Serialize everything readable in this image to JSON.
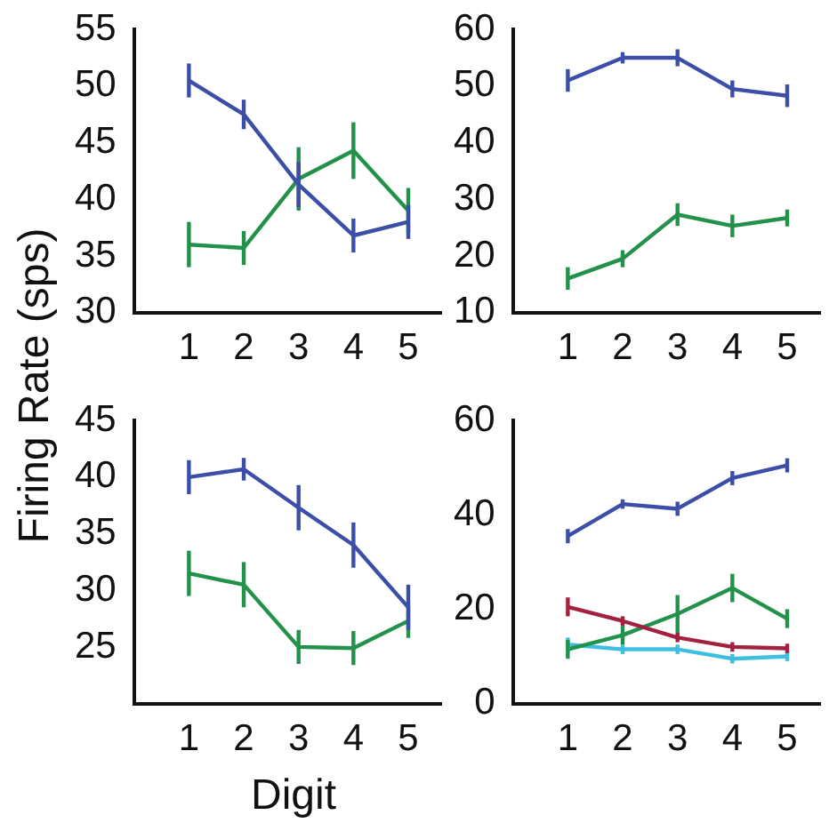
{
  "chart_data": [
    {
      "type": "line",
      "ylabel": "Firing Rate (sps)",
      "x": [
        1,
        2,
        3,
        4,
        5
      ],
      "xlim": [
        0,
        5.6
      ],
      "xticks": [
        1,
        2,
        3,
        4,
        5
      ],
      "ylim": [
        30,
        55
      ],
      "yticks": [
        30,
        35,
        40,
        45,
        50,
        55
      ],
      "grid": false,
      "legend": false,
      "marker": "none",
      "series": [
        {
          "color": "#3b4fa8",
          "values": [
            50.5,
            47.5,
            41.3,
            36.8,
            38
          ],
          "errors": [
            1.5,
            1.3,
            2,
            1.5,
            1.5
          ]
        },
        {
          "color": "#22914a",
          "values": [
            36,
            35.7,
            41.8,
            44.3,
            39
          ],
          "errors": [
            2,
            1.5,
            2.8,
            2.5,
            2
          ]
        }
      ]
    },
    {
      "type": "line",
      "x": [
        1,
        2,
        3,
        4,
        5
      ],
      "xlim": [
        0,
        5.6
      ],
      "xticks": [
        1,
        2,
        3,
        4,
        5
      ],
      "ylim": [
        10,
        60
      ],
      "yticks": [
        10,
        20,
        30,
        40,
        50,
        60
      ],
      "grid": false,
      "legend": false,
      "marker": "none",
      "series": [
        {
          "color": "#3b4fa8",
          "values": [
            51,
            55,
            55,
            49.5,
            48.3
          ],
          "errors": [
            2,
            1,
            1.5,
            1.5,
            2
          ]
        },
        {
          "color": "#22914a",
          "values": [
            16,
            19.5,
            27.3,
            25.3,
            26.7
          ],
          "errors": [
            2,
            1.5,
            2,
            2,
            1.5
          ]
        }
      ]
    },
    {
      "type": "line",
      "xlabel": "Digit",
      "x": [
        1,
        2,
        3,
        4,
        5
      ],
      "xlim": [
        0,
        5.6
      ],
      "xticks": [
        1,
        2,
        3,
        4,
        5
      ],
      "ylim": [
        20,
        45
      ],
      "yticks": [
        25,
        30,
        35,
        40,
        45
      ],
      "grid": false,
      "legend": false,
      "marker": "none",
      "series": [
        {
          "color": "#3b4fa8",
          "values": [
            40,
            40.7,
            37.3,
            34,
            28.5
          ],
          "errors": [
            1.5,
            1,
            2,
            2,
            2
          ]
        },
        {
          "color": "#22914a",
          "values": [
            31.5,
            30.5,
            25,
            24.9,
            27.3
          ],
          "errors": [
            2,
            2,
            1.5,
            1.5,
            1.5
          ]
        }
      ]
    },
    {
      "type": "line",
      "x": [
        1,
        2,
        3,
        4,
        5
      ],
      "xlim": [
        0,
        5.6
      ],
      "xticks": [
        1,
        2,
        3,
        4,
        5
      ],
      "ylim": [
        0,
        60
      ],
      "yticks": [
        0,
        20,
        40,
        60
      ],
      "grid": false,
      "legend": false,
      "marker": "none",
      "series": [
        {
          "color": "#3b4fa8",
          "values": [
            35.5,
            42.3,
            41.3,
            47.8,
            50.5
          ],
          "errors": [
            1.5,
            1,
            1.5,
            1.5,
            1.5
          ]
        },
        {
          "color": "#a3213f",
          "values": [
            20.5,
            17.5,
            14,
            12,
            11.7
          ],
          "errors": [
            2,
            1,
            1,
            1,
            1
          ]
        },
        {
          "color": "#22914a",
          "values": [
            11.5,
            14.5,
            19,
            24.5,
            18
          ],
          "errors": [
            2,
            2,
            4,
            3,
            2
          ]
        },
        {
          "color": "#3fbfdf",
          "values": [
            12.5,
            11.5,
            11.5,
            9.5,
            10
          ],
          "errors": [
            1.5,
            1,
            1,
            1,
            1
          ]
        }
      ]
    }
  ]
}
